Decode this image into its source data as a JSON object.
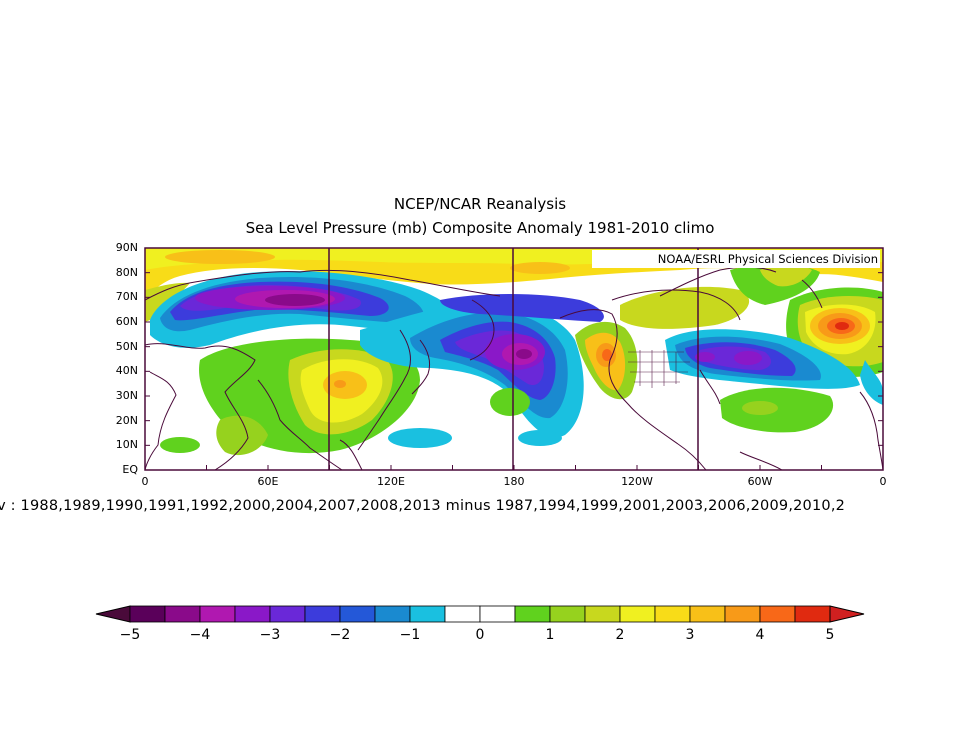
{
  "title": "NCEP/NCAR Reanalysis",
  "subtitle": "Sea Level Pressure (mb) Composite Anomaly 1981-2010 climo",
  "credit": "NOAA/ESRL Physical Sciences Division",
  "caption": "ov : 1988,1989,1990,1991,1992,2000,2004,2007,2008,2013 minus 1987,1994,1999,2001,2003,2006,2009,2010,2",
  "lat_ticks": [
    "90N",
    "80N",
    "70N",
    "60N",
    "50N",
    "40N",
    "30N",
    "20N",
    "10N",
    "EQ"
  ],
  "lon_ticks": [
    "0",
    "60E",
    "120E",
    "180",
    "120W",
    "60W",
    "0"
  ],
  "colorbar": {
    "labels": [
      "-5",
      "-4",
      "-3",
      "-2",
      "-1",
      "0",
      "1",
      "2",
      "3",
      "4",
      "5"
    ],
    "colors": [
      "#5a005a",
      "#8a0a8a",
      "#b018b0",
      "#8a18c8",
      "#6a28d8",
      "#3c3cdc",
      "#2458d8",
      "#1a8ad0",
      "#1ac0e0",
      "#ffffff",
      "#ffffff",
      "#60d21e",
      "#96d21e",
      "#c8d81e",
      "#f0f020",
      "#f8dc18",
      "#f8c018",
      "#f89a18",
      "#f86818",
      "#e02a10"
    ],
    "under_color": "#4a0a3a",
    "over_color": "#d02020"
  }
}
